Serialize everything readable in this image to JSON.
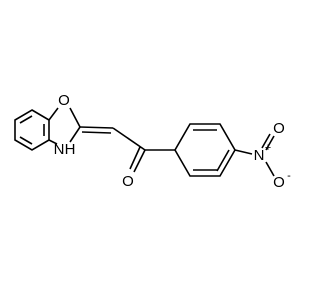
{
  "atoms": {
    "ring_o": "O",
    "ring_n": "N",
    "ring_h": "H",
    "carbonyl_o": "O",
    "nitro_n": "N",
    "nitro_plus": "+",
    "nitro_o1": "O",
    "nitro_o2": "O",
    "nitro_minus": "-"
  }
}
